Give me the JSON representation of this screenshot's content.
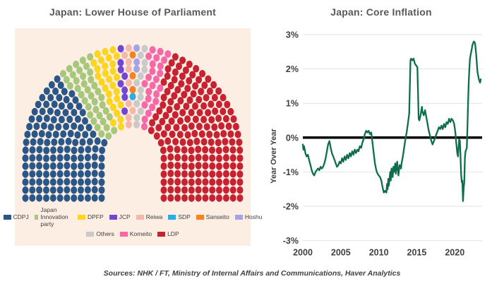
{
  "sources": {
    "text": "Sources: NHK / FT, Ministry of Internal Affairs and Communications, Haver Analytics"
  },
  "left_chart": {
    "background": "#fdeee3"
  },
  "chart_data": [
    {
      "type": "parliament",
      "title": "Japan: Lower House of Parliament",
      "total_seats": 465,
      "parties": [
        {
          "name": "CDPJ",
          "seats": 148,
          "color": "#2a5788"
        },
        {
          "name": "Japan Innovation party",
          "seats": 38,
          "color": "#a6c87c"
        },
        {
          "name": "DPFP",
          "seats": 28,
          "color": "#fdd41f"
        },
        {
          "name": "JCP",
          "seats": 8,
          "color": "#7345d6"
        },
        {
          "name": "Reiwa",
          "seats": 9,
          "color": "#f5b8a8"
        },
        {
          "name": "SDP",
          "seats": 1,
          "color": "#28ade4"
        },
        {
          "name": "Sanseito",
          "seats": 3,
          "color": "#f5831f"
        },
        {
          "name": "Hoshu",
          "seats": 3,
          "color": "#a7a2e6"
        },
        {
          "name": "Others",
          "seats": 12,
          "color": "#c9c9c9"
        },
        {
          "name": "Komeito",
          "seats": 24,
          "color": "#f768a9"
        },
        {
          "name": "LDP",
          "seats": 191,
          "color": "#c62231"
        }
      ],
      "legend_rows": [
        [
          "CDPJ",
          "Japan Innovation party",
          "DPFP",
          "JCP",
          "Reiwa",
          "SDP",
          "Sanseito",
          "Hoshu"
        ],
        [
          "Others",
          "Komeito",
          "LDP"
        ]
      ]
    },
    {
      "type": "line",
      "title": "Japan: Core Inflation",
      "ylabel": "Year Over Year",
      "line_color": "#0d6e4b",
      "zero_line_color": "#000000",
      "grid_color": "#e2e2e2",
      "tick_color": "#404040",
      "ylim": [
        -3,
        3
      ],
      "xlim": [
        2000,
        2023.6
      ],
      "yticks": [
        {
          "v": 3,
          "label": "3%"
        },
        {
          "v": 2,
          "label": "2%"
        },
        {
          "v": 1,
          "label": "1%"
        },
        {
          "v": 0,
          "label": "0%"
        },
        {
          "v": -1,
          "label": "-1%"
        },
        {
          "v": -2,
          "label": "-2%"
        },
        {
          "v": -3,
          "label": "-3%"
        }
      ],
      "xticks": [
        {
          "v": 2000,
          "label": "2000"
        },
        {
          "v": 2005,
          "label": "2005"
        },
        {
          "v": 2010,
          "label": "2010"
        },
        {
          "v": 2015,
          "label": "2015"
        },
        {
          "v": 2020,
          "label": "2020"
        }
      ],
      "x": [
        2000.0,
        2000.08,
        2000.17,
        2000.33,
        2000.5,
        2000.67,
        2000.83,
        2001.0,
        2001.17,
        2001.33,
        2001.5,
        2001.67,
        2001.83,
        2002.0,
        2002.17,
        2002.33,
        2002.5,
        2002.67,
        2002.83,
        2003.0,
        2003.17,
        2003.33,
        2003.5,
        2003.67,
        2003.83,
        2004.0,
        2004.17,
        2004.33,
        2004.5,
        2004.67,
        2004.83,
        2005.0,
        2005.17,
        2005.33,
        2005.5,
        2005.67,
        2005.83,
        2006.0,
        2006.17,
        2006.33,
        2006.5,
        2006.67,
        2006.83,
        2007.0,
        2007.17,
        2007.33,
        2007.5,
        2007.67,
        2007.83,
        2008.0,
        2008.17,
        2008.33,
        2008.5,
        2008.67,
        2008.83,
        2009.0,
        2009.17,
        2009.33,
        2009.5,
        2009.67,
        2009.83,
        2010.0,
        2010.17,
        2010.33,
        2010.5,
        2010.67,
        2010.83,
        2011.0,
        2011.08,
        2011.17,
        2011.25,
        2011.33,
        2011.5,
        2011.58,
        2011.67,
        2011.83,
        2011.92,
        2012.0,
        2012.17,
        2012.25,
        2012.42,
        2012.58,
        2012.75,
        2012.92,
        2013.0,
        2013.17,
        2013.33,
        2013.5,
        2013.67,
        2013.83,
        2014.0,
        2014.17,
        2014.25,
        2014.42,
        2014.58,
        2014.75,
        2014.92,
        2015.08,
        2015.25,
        2015.33,
        2015.5,
        2015.67,
        2015.75,
        2015.92,
        2016.08,
        2016.25,
        2016.42,
        2016.58,
        2016.75,
        2016.92,
        2017.08,
        2017.25,
        2017.42,
        2017.58,
        2017.75,
        2017.92,
        2018.08,
        2018.25,
        2018.42,
        2018.58,
        2018.75,
        2018.92,
        2019.08,
        2019.25,
        2019.42,
        2019.58,
        2019.75,
        2019.92,
        2020.08,
        2020.17,
        2020.33,
        2020.42,
        2020.5,
        2020.58,
        2020.67,
        2020.75,
        2020.83,
        2020.92,
        2021.0,
        2021.08,
        2021.17,
        2021.25,
        2021.33,
        2021.42,
        2021.5,
        2021.58,
        2021.67,
        2021.75,
        2021.83,
        2021.92,
        2022.0,
        2022.08,
        2022.17,
        2022.25,
        2022.33,
        2022.42,
        2022.5,
        2022.58,
        2022.67,
        2022.83,
        2022.92,
        2023.0,
        2023.17,
        2023.33,
        2023.42
      ],
      "y": [
        -0.2,
        -0.35,
        -0.25,
        -0.45,
        -0.55,
        -0.5,
        -0.65,
        -0.8,
        -0.95,
        -1.05,
        -1.1,
        -1.0,
        -0.95,
        -0.9,
        -0.95,
        -0.85,
        -0.9,
        -0.85,
        -0.75,
        -0.6,
        -0.4,
        -0.2,
        -0.1,
        -0.3,
        -0.45,
        -0.55,
        -0.65,
        -0.75,
        -0.85,
        -0.8,
        -0.7,
        -0.75,
        -0.6,
        -0.7,
        -0.55,
        -0.65,
        -0.5,
        -0.6,
        -0.45,
        -0.55,
        -0.4,
        -0.5,
        -0.35,
        -0.45,
        -0.35,
        -0.4,
        -0.25,
        -0.3,
        -0.15,
        -0.05,
        0.1,
        0.2,
        0.15,
        0.2,
        0.1,
        0.15,
        -0.15,
        -0.45,
        -0.75,
        -0.95,
        -1.05,
        -1.1,
        -1.15,
        -1.25,
        -1.45,
        -1.6,
        -1.55,
        -1.6,
        -1.35,
        -1.5,
        -1.2,
        -1.4,
        -1.0,
        -1.25,
        -0.9,
        -1.15,
        -0.85,
        -1.0,
        -0.75,
        -1.05,
        -0.7,
        -1.1,
        -0.8,
        -0.9,
        -0.75,
        -0.55,
        -0.3,
        -0.05,
        0.15,
        0.4,
        0.7,
        2.25,
        2.3,
        2.25,
        2.3,
        2.15,
        2.1,
        2.05,
        0.55,
        0.5,
        0.65,
        0.9,
        0.75,
        0.65,
        0.8,
        0.6,
        0.4,
        0.2,
        0.05,
        -0.1,
        -0.2,
        -0.1,
        0.0,
        0.1,
        0.2,
        0.3,
        0.25,
        0.35,
        0.25,
        0.4,
        0.3,
        0.45,
        0.4,
        0.55,
        0.45,
        0.55,
        0.5,
        0.4,
        0.15,
        -0.1,
        -0.45,
        -0.55,
        -0.3,
        -0.05,
        -0.1,
        -0.5,
        -1.05,
        -1.3,
        -1.25,
        -1.85,
        -1.5,
        -1.3,
        -0.6,
        -0.4,
        -0.35,
        -0.3,
        0.3,
        1.0,
        1.6,
        2.0,
        2.3,
        2.4,
        2.5,
        2.6,
        2.7,
        2.75,
        2.8,
        2.78,
        2.75,
        2.4,
        2.1,
        1.9,
        1.7,
        1.6,
        1.7
      ]
    }
  ]
}
